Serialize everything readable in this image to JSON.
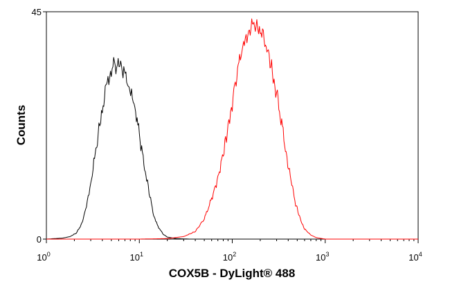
{
  "chart_data": {
    "type": "line",
    "title": "",
    "xlabel": "COX5B - DyLight® 488",
    "ylabel": "Counts",
    "xscale": "log",
    "xlim": [
      1,
      10000
    ],
    "ylim": [
      0,
      45
    ],
    "y_ticks": [
      {
        "value": 0,
        "label": "0"
      },
      {
        "value": 45,
        "label": "45"
      }
    ],
    "x_ticks": [
      {
        "value": 1,
        "base": "10",
        "exp": "0"
      },
      {
        "value": 10,
        "base": "10",
        "exp": "1"
      },
      {
        "value": 100,
        "base": "10",
        "exp": "2"
      },
      {
        "value": 1000,
        "base": "10",
        "exp": "3"
      },
      {
        "value": 10000,
        "base": "10",
        "exp": "4"
      }
    ],
    "grid": false,
    "legend": "none",
    "series": [
      {
        "color": "#000000",
        "x": [
          1.0,
          1.5,
          1.8,
          2.1,
          2.4,
          2.7,
          3.0,
          3.3,
          3.6,
          4.0,
          4.3,
          4.6,
          5.0,
          5.4,
          5.8,
          6.3,
          6.8,
          7.3,
          7.9,
          8.6,
          9.3,
          10.0,
          11.0,
          12.0,
          13.0,
          14.0,
          15.0,
          16.5,
          18.0,
          20.0,
          25.0,
          35.0,
          100.0,
          10000.0
        ],
        "y": [
          0,
          0.2,
          0.5,
          1.2,
          3,
          6.5,
          11,
          16,
          21,
          26,
          29,
          31.5,
          33.5,
          35,
          34,
          34.5,
          33,
          31.5,
          29,
          27,
          24.5,
          20.5,
          16,
          12,
          8.5,
          5.5,
          3.5,
          2,
          1,
          0.4,
          0.1,
          0,
          0,
          0
        ]
      },
      {
        "color": "#ff0000",
        "x": [
          1.0,
          10.0,
          20.0,
          30.0,
          40.0,
          50.0,
          60.0,
          70.0,
          80.0,
          90.0,
          100.0,
          110.0,
          120.0,
          135.0,
          150.0,
          165.0,
          180.0,
          200.0,
          220.0,
          240.0,
          270.0,
          300.0,
          340.0,
          380.0,
          430.0,
          480.0,
          540.0,
          600.0,
          700.0,
          800.0,
          1000.0,
          10000.0
        ],
        "y": [
          0,
          0,
          0.1,
          0.5,
          1.5,
          4,
          8,
          12,
          17,
          22,
          27,
          32,
          35.5,
          39,
          41,
          42.5,
          43,
          41.5,
          40,
          37.5,
          33,
          29,
          23,
          17,
          11.5,
          7,
          4,
          2,
          0.8,
          0.3,
          0,
          0
        ]
      }
    ]
  }
}
